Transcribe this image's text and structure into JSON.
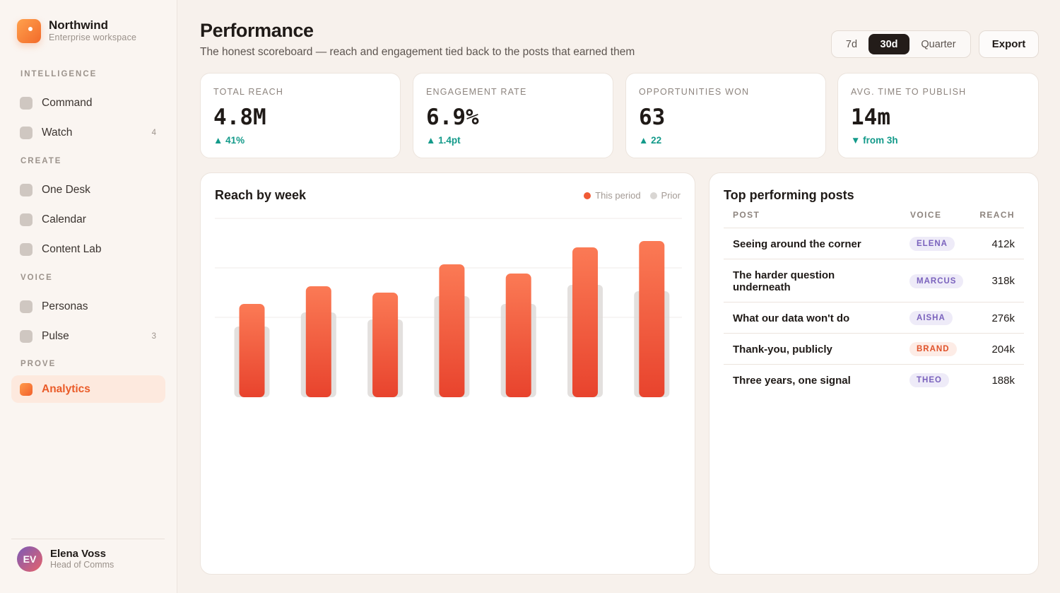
{
  "brand": {
    "name": "Northwind",
    "subtitle": "Enterprise workspace"
  },
  "sidebar": {
    "sections": [
      {
        "heading": "INTELLIGENCE",
        "items": [
          {
            "label": "Command",
            "count": ""
          },
          {
            "label": "Watch",
            "count": "4"
          }
        ]
      },
      {
        "heading": "CREATE",
        "items": [
          {
            "label": "One Desk",
            "count": ""
          },
          {
            "label": "Calendar",
            "count": ""
          },
          {
            "label": "Content Lab",
            "count": ""
          }
        ]
      },
      {
        "heading": "VOICE",
        "items": [
          {
            "label": "Personas",
            "count": ""
          },
          {
            "label": "Pulse",
            "count": "3"
          }
        ]
      },
      {
        "heading": "PROVE",
        "items": [
          {
            "label": "Analytics",
            "count": "",
            "active": true
          }
        ]
      }
    ]
  },
  "user": {
    "initials": "EV",
    "name": "Elena Voss",
    "role": "Head of Comms"
  },
  "header": {
    "title": "Performance",
    "subtitle": "The honest scoreboard — reach and engagement tied back to the posts that earned them",
    "periods": [
      "7d",
      "30d",
      "Quarter"
    ],
    "selected_period": "30d",
    "export_label": "Export"
  },
  "kpis": [
    {
      "label": "TOTAL REACH",
      "value": "4.8M",
      "delta": "▲ 41%"
    },
    {
      "label": "ENGAGEMENT RATE",
      "value": "6.9%",
      "delta": "▲ 1.4pt"
    },
    {
      "label": "OPPORTUNITIES WON",
      "value": "63",
      "delta": "▲ 22"
    },
    {
      "label": "AVG. TIME TO PUBLISH",
      "value": "14m",
      "delta": "▼ from 3h"
    }
  ],
  "chart_panel": {
    "title": "Reach by week",
    "legend": [
      {
        "label": "This period",
        "color": "#f05a35"
      },
      {
        "label": "Prior",
        "color": "#d9d6d3"
      }
    ]
  },
  "chart_data": {
    "type": "bar",
    "title": "Reach by week",
    "categories": [
      "",
      "",
      "",
      "",
      "",
      "",
      ""
    ],
    "series": [
      {
        "name": "This period",
        "values": [
          132,
          157,
          148,
          188,
          175,
          212,
          221
        ]
      },
      {
        "name": "Prior",
        "values": [
          100,
          120,
          110,
          143,
          132,
          159,
          150
        ]
      }
    ],
    "ylim": [
      0,
      220
    ],
    "grid": true,
    "legend_position": "top-right",
    "colors": {
      "this_period": "#f05a35",
      "prior": "#dedbd8"
    }
  },
  "posts_panel": {
    "title": "Top performing posts",
    "columns": {
      "post": "POST",
      "voice": "VOICE",
      "reach": "REACH"
    },
    "rows": [
      {
        "post": "Seeing around the corner",
        "voice": "ELENA",
        "voice_style": "purple",
        "reach": "412k"
      },
      {
        "post": "The harder question underneath",
        "voice": "MARCUS",
        "voice_style": "purple",
        "reach": "318k"
      },
      {
        "post": "What our data won't do",
        "voice": "AISHA",
        "voice_style": "purple",
        "reach": "276k"
      },
      {
        "post": "Thank-you, publicly",
        "voice": "BRAND",
        "voice_style": "orange",
        "reach": "204k"
      },
      {
        "post": "Three years, one signal",
        "voice": "THEO",
        "voice_style": "purple",
        "reach": "188k"
      }
    ]
  }
}
